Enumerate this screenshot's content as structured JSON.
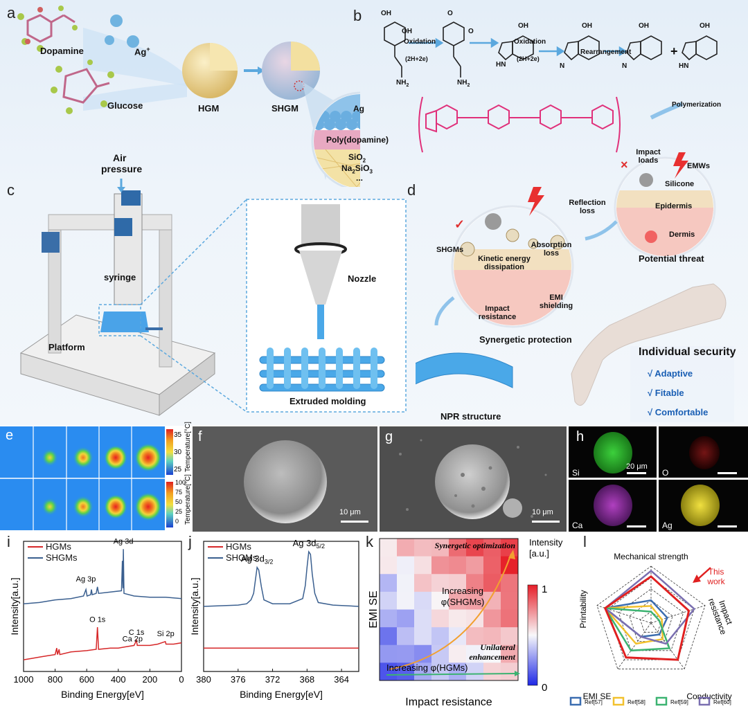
{
  "panels": {
    "a": {
      "label": "a",
      "dopamine": "Dopamine",
      "ag": "Ag",
      "ag_sup": "+",
      "glucose": "Glucose",
      "hgm": "HGM",
      "shgm": "SHGM",
      "layers": {
        "ag": "Ag",
        "pda": "Poly(dopamine)",
        "sio2": "SiO",
        "sio2_sub": "2",
        "na": "Na",
        "na_sub1": "2",
        "na_rest": "SiO",
        "na_sub2": "3",
        "dots": "..."
      }
    },
    "b": {
      "label": "b",
      "ox1": "Oxidation",
      "ox1b": "(2H+2e)",
      "ox2": "Oxidation",
      "ox2b": "(2H+2e)",
      "rearr": "Rearrangement",
      "plus": "+",
      "poly": "Polymerization",
      "oh": "OH",
      "o": "O",
      "nh2": "NH",
      "nh2_sub": "2",
      "hn": "HN",
      "n": "N"
    },
    "c": {
      "label": "c",
      "air": "Air",
      "pressure": "pressure",
      "syringe": "syringe",
      "platform": "Platform",
      "nozzle": "Nozzle",
      "extruded": "Extruded molding"
    },
    "d": {
      "label": "d",
      "impact_loads": "Impact loads",
      "emws": "EMWs",
      "silicone": "Silicone",
      "epidermis": "Epidermis",
      "dermis": "Dermis",
      "threat": "Potential threat",
      "reflection": "Reflection loss",
      "absorption": "Absorption loss",
      "shgms": "SHGMs",
      "kinetic": "Kinetic energy dissipation",
      "impact_res": "Impact resistance",
      "emi": "EMI shielding",
      "synergetic": "Synergetic protection",
      "npr": "NPR structure",
      "individual": "Individual security",
      "adaptive": "√  Adaptive",
      "fitable": "√  Fitable",
      "comfortable": "√  Comfortable",
      "check": "✓",
      "cross": "×"
    },
    "e": {
      "label": "e",
      "cb1_title": "Temperature[°C]",
      "cb1_ticks": [
        "35",
        "30",
        "25"
      ],
      "cb2_title": "Temperature[°C]",
      "cb2_ticks": [
        "100",
        "75",
        "50",
        "25",
        "0"
      ]
    },
    "f": {
      "label": "f",
      "scale": "10 μm"
    },
    "g": {
      "label": "g",
      "scale": "10 μm"
    },
    "h": {
      "label": "h",
      "si": "Si",
      "o": "O",
      "ca": "Ca",
      "ag": "Ag",
      "scale": "20 μm"
    },
    "i": {
      "label": "i"
    },
    "j": {
      "label": "j"
    },
    "k": {
      "label": "k"
    },
    "l": {
      "label": "l"
    }
  },
  "colors": {
    "hgm_line": "#d62728",
    "shgm_line": "#3a5f8f",
    "ref57": "#3b6db0",
    "ref58": "#f2c12e",
    "ref59": "#3cb371",
    "ref60": "#7a6fb0",
    "this_work": "#e02020"
  },
  "chart_data": [
    {
      "panel": "i",
      "type": "line",
      "xlabel": "Binding Energy[eV]",
      "ylabel": "Intensity[a.u.]",
      "xlim": [
        1000,
        0
      ],
      "xticks": [
        "1000",
        "800",
        "600",
        "400",
        "200",
        "0"
      ],
      "series": [
        {
          "name": "HGMs",
          "color": "#d62728"
        },
        {
          "name": "SHGMs",
          "color": "#3a5f8f"
        }
      ],
      "annotations": [
        "Ag 3d",
        "Ag 3p",
        "O 1s",
        "C 1s",
        "Ca 2p",
        "Si 2p"
      ],
      "hgm": [
        [
          1000,
          0.09
        ],
        [
          950,
          0.1
        ],
        [
          900,
          0.11
        ],
        [
          850,
          0.12
        ],
        [
          800,
          0.13
        ],
        [
          790,
          0.18
        ],
        [
          785,
          0.13
        ],
        [
          775,
          0.17
        ],
        [
          770,
          0.13
        ],
        [
          700,
          0.15
        ],
        [
          600,
          0.16
        ],
        [
          540,
          0.17
        ],
        [
          532,
          0.34
        ],
        [
          525,
          0.17
        ],
        [
          450,
          0.18
        ],
        [
          400,
          0.18
        ],
        [
          350,
          0.19
        ],
        [
          300,
          0.2
        ],
        [
          285,
          0.24
        ],
        [
          280,
          0.2
        ],
        [
          200,
          0.2
        ],
        [
          150,
          0.21
        ],
        [
          102,
          0.23
        ],
        [
          98,
          0.21
        ],
        [
          50,
          0.21
        ],
        [
          0,
          0.22
        ]
      ],
      "shgm": [
        [
          1000,
          0.52
        ],
        [
          900,
          0.53
        ],
        [
          800,
          0.55
        ],
        [
          700,
          0.56
        ],
        [
          620,
          0.58
        ],
        [
          605,
          0.63
        ],
        [
          598,
          0.58
        ],
        [
          575,
          0.59
        ],
        [
          570,
          0.63
        ],
        [
          565,
          0.59
        ],
        [
          540,
          0.6
        ],
        [
          532,
          0.65
        ],
        [
          525,
          0.6
        ],
        [
          450,
          0.61
        ],
        [
          380,
          0.62
        ],
        [
          374,
          0.85
        ],
        [
          370,
          0.64
        ],
        [
          368,
          0.94
        ],
        [
          364,
          0.6
        ],
        [
          300,
          0.58
        ],
        [
          200,
          0.57
        ],
        [
          100,
          0.57
        ],
        [
          0,
          0.56
        ]
      ]
    },
    {
      "panel": "j",
      "type": "line",
      "xlabel": "Binding Energy[eV]",
      "ylabel": "Intensity[a.u.]",
      "xlim": [
        380,
        362
      ],
      "xticks": [
        "380",
        "376",
        "372",
        "368",
        "364"
      ],
      "series": [
        {
          "name": "HGMs",
          "color": "#d62728"
        },
        {
          "name": "SHGMs",
          "color": "#3a5f8f"
        }
      ],
      "annotations": [
        "Ag 3d",
        "3/2",
        "Ag 3d",
        "5/2"
      ],
      "shgm": [
        [
          380,
          0.5
        ],
        [
          376,
          0.51
        ],
        [
          375,
          0.52
        ],
        [
          374.5,
          0.55
        ],
        [
          374.2,
          0.6
        ],
        [
          374,
          0.7
        ],
        [
          373.8,
          0.8
        ],
        [
          373.6,
          0.78
        ],
        [
          373.3,
          0.65
        ],
        [
          373,
          0.55
        ],
        [
          372,
          0.52
        ],
        [
          370,
          0.52
        ],
        [
          368.5,
          0.56
        ],
        [
          368.2,
          0.66
        ],
        [
          368,
          0.8
        ],
        [
          367.8,
          0.92
        ],
        [
          367.6,
          0.9
        ],
        [
          367.4,
          0.75
        ],
        [
          367.1,
          0.6
        ],
        [
          366.7,
          0.53
        ],
        [
          365,
          0.51
        ],
        [
          362,
          0.5
        ]
      ],
      "hgm": [
        [
          380,
          0.18
        ],
        [
          370,
          0.18
        ],
        [
          362,
          0.18
        ]
      ]
    },
    {
      "panel": "k",
      "type": "heatmap",
      "xlabel": "Impact resistance",
      "ylabel": "EMI SE",
      "colorbar_title": "Intensity [a.u.]",
      "colorbar_ticks": [
        "1",
        "0"
      ],
      "annotations": [
        "Synergetic optimization",
        "Increasing φ(SHGMs)",
        "Increasing φ(HGMs)",
        "Unilateral enhancement"
      ]
    },
    {
      "panel": "l",
      "type": "radar",
      "axes": [
        "Mechanical strength",
        "Impact resistance",
        "Conductivity",
        "EMI SE",
        "Printability"
      ],
      "annotation": "This work",
      "series": [
        {
          "name": "Ref[57]",
          "color": "#3b6db0",
          "values": [
            0.4,
            0.3,
            0.25,
            0.3,
            0.85
          ]
        },
        {
          "name": "Ref[58]",
          "color": "#f2c12e",
          "values": [
            0.3,
            0.2,
            0.35,
            0.45,
            0.85
          ]
        },
        {
          "name": "Ref[59]",
          "color": "#3cb371",
          "values": [
            0.2,
            0.15,
            0.55,
            0.6,
            0.85
          ]
        },
        {
          "name": "Ref[60]",
          "color": "#7a6fb0",
          "values": [
            0.92,
            0.8,
            0.45,
            0.3,
            0.85
          ]
        },
        {
          "name": "This work",
          "color": "#e02020",
          "values": [
            0.82,
            0.7,
            0.8,
            0.75,
            0.85
          ]
        }
      ]
    }
  ]
}
